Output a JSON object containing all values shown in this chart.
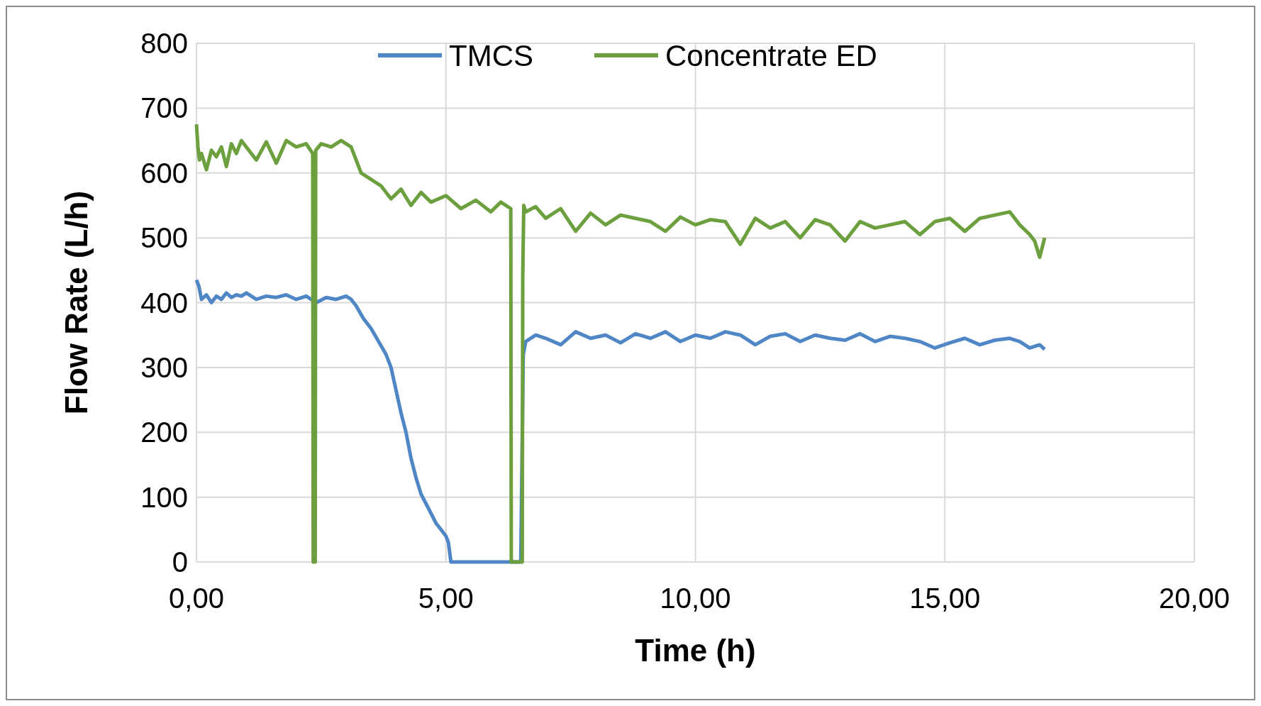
{
  "chart_data": {
    "type": "line",
    "xlabel": "Time (h)",
    "ylabel": "Flow Rate (L/h)",
    "xlim": [
      0,
      20
    ],
    "ylim": [
      0,
      800
    ],
    "xticks": [
      {
        "value": 0,
        "label": "0,00"
      },
      {
        "value": 5,
        "label": "5,00"
      },
      {
        "value": 10,
        "label": "10,00"
      },
      {
        "value": 15,
        "label": "15,00"
      },
      {
        "value": 20,
        "label": "20,00"
      }
    ],
    "yticks": [
      0,
      100,
      200,
      300,
      400,
      500,
      600,
      700,
      800
    ],
    "grid": true,
    "legend": "top",
    "line_style": "solid",
    "series": [
      {
        "name": "TMCS",
        "color": "#4f86c6",
        "x": [
          0,
          0.05,
          0.1,
          0.2,
          0.3,
          0.4,
          0.5,
          0.6,
          0.7,
          0.8,
          0.9,
          1.0,
          1.2,
          1.4,
          1.6,
          1.8,
          2.0,
          2.2,
          2.4,
          2.6,
          2.8,
          3.0,
          3.1,
          3.2,
          3.35,
          3.5,
          3.65,
          3.8,
          3.9,
          4.0,
          4.1,
          4.2,
          4.3,
          4.4,
          4.5,
          4.6,
          4.7,
          4.8,
          4.9,
          5.0,
          5.05,
          5.1,
          5.5,
          6.0,
          6.5,
          6.55,
          6.6,
          6.8,
          7.0,
          7.3,
          7.6,
          7.9,
          8.2,
          8.5,
          8.8,
          9.1,
          9.4,
          9.7,
          10.0,
          10.3,
          10.6,
          10.9,
          11.2,
          11.5,
          11.8,
          12.1,
          12.4,
          12.7,
          13.0,
          13.3,
          13.6,
          13.9,
          14.2,
          14.5,
          14.8,
          15.1,
          15.4,
          15.7,
          16.0,
          16.3,
          16.5,
          16.7,
          16.9,
          17.0
        ],
        "values": [
          435,
          425,
          405,
          412,
          400,
          410,
          405,
          415,
          408,
          412,
          410,
          415,
          405,
          410,
          408,
          412,
          405,
          410,
          400,
          408,
          405,
          410,
          405,
          395,
          375,
          360,
          340,
          320,
          300,
          265,
          230,
          200,
          160,
          130,
          105,
          90,
          75,
          60,
          50,
          40,
          30,
          0,
          0,
          0,
          0,
          320,
          340,
          350,
          345,
          335,
          355,
          345,
          350,
          338,
          352,
          345,
          355,
          340,
          350,
          345,
          355,
          350,
          335,
          348,
          352,
          340,
          350,
          345,
          342,
          352,
          340,
          348,
          345,
          340,
          330,
          338,
          345,
          335,
          342,
          345,
          340,
          330,
          335,
          328
        ]
      },
      {
        "name": "Concentrate ED",
        "color": "#6c9f3e",
        "x": [
          0,
          0.03,
          0.06,
          0.1,
          0.2,
          0.3,
          0.4,
          0.5,
          0.6,
          0.7,
          0.8,
          0.9,
          1.0,
          1.2,
          1.4,
          1.6,
          1.8,
          2.0,
          2.2,
          2.33,
          2.34,
          2.38,
          2.39,
          2.5,
          2.7,
          2.9,
          3.0,
          3.1,
          3.2,
          3.3,
          3.5,
          3.7,
          3.9,
          4.1,
          4.3,
          4.5,
          4.7,
          5.0,
          5.3,
          5.6,
          5.9,
          6.1,
          6.3,
          6.31,
          6.53,
          6.54,
          6.56,
          6.6,
          6.8,
          7.0,
          7.3,
          7.6,
          7.9,
          8.2,
          8.5,
          8.8,
          9.1,
          9.4,
          9.7,
          10.0,
          10.3,
          10.6,
          10.9,
          11.2,
          11.5,
          11.8,
          12.1,
          12.4,
          12.7,
          13.0,
          13.3,
          13.6,
          13.9,
          14.2,
          14.5,
          14.8,
          15.1,
          15.4,
          15.7,
          16.0,
          16.3,
          16.5,
          16.7,
          16.8,
          16.9,
          17.0
        ],
        "values": [
          675,
          640,
          620,
          630,
          605,
          635,
          625,
          640,
          610,
          645,
          630,
          650,
          640,
          620,
          648,
          615,
          650,
          640,
          645,
          630,
          0,
          0,
          635,
          645,
          640,
          650,
          645,
          640,
          620,
          600,
          590,
          580,
          560,
          575,
          550,
          570,
          555,
          565,
          545,
          558,
          540,
          555,
          545,
          0,
          0,
          440,
          550,
          540,
          548,
          530,
          545,
          510,
          538,
          520,
          535,
          530,
          525,
          510,
          532,
          520,
          528,
          525,
          490,
          530,
          515,
          525,
          500,
          528,
          520,
          495,
          525,
          515,
          520,
          525,
          505,
          525,
          530,
          510,
          530,
          535,
          540,
          520,
          505,
          495,
          470,
          500
        ]
      }
    ]
  }
}
